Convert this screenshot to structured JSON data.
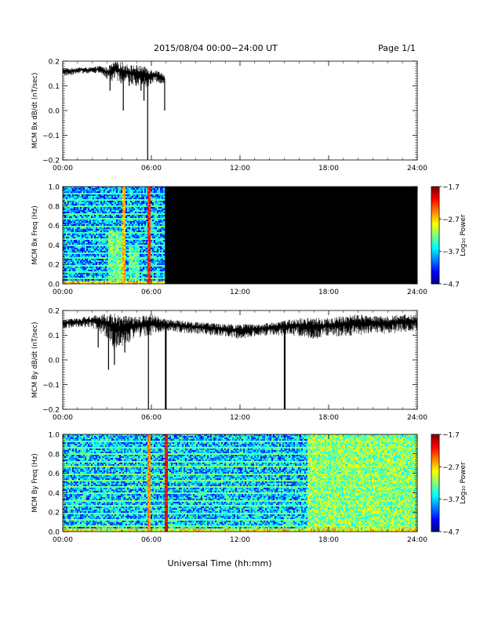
{
  "header": {
    "title": "2015/08/04  00:00−24:00 UT",
    "page": "Page 1/1"
  },
  "xlabel": "Universal Time (hh:mm)",
  "colors": {
    "background": "#000000",
    "trace": "#000000"
  },
  "chart_data": [
    {
      "type": "line",
      "ylabel": "MCM Bx dB/dt (nT/sec)",
      "xlim": [
        0,
        24
      ],
      "ylim": [
        -0.2,
        0.2
      ],
      "xticks": [
        "00:00",
        "06:00",
        "12:00",
        "18:00",
        "24:00"
      ],
      "yticks": [
        "−0.2",
        "−0.1",
        "0.0",
        "0.1",
        "0.2"
      ],
      "series": [
        {
          "x": [
            0.0,
            0.5,
            1.0,
            1.5,
            2.0,
            2.5,
            3.0,
            3.3,
            3.6,
            4.0,
            4.5,
            5.0,
            5.5,
            5.7,
            6.0,
            6.3,
            6.6,
            6.9
          ],
          "y": [
            0.16,
            0.16,
            0.165,
            0.165,
            0.165,
            0.17,
            0.155,
            0.16,
            0.17,
            0.16,
            0.155,
            0.15,
            0.15,
            0.14,
            0.145,
            0.145,
            0.14,
            0.13
          ],
          "noise": [
            0.015,
            0.012,
            0.01,
            0.01,
            0.01,
            0.012,
            0.02,
            0.03,
            0.03,
            0.035,
            0.03,
            0.035,
            0.03,
            0.04,
            0.025,
            0.02,
            0.02,
            0.015
          ]
        }
      ],
      "spikes": [
        {
          "x": 3.2,
          "y": 0.08
        },
        {
          "x": 4.1,
          "y": 0.0
        },
        {
          "x": 4.5,
          "y": 0.1
        },
        {
          "x": 5.3,
          "y": 0.08
        },
        {
          "x": 5.5,
          "y": 0.04
        },
        {
          "x": 5.75,
          "y": -0.2
        },
        {
          "x": 6.9,
          "y": 0.0
        }
      ],
      "data_end": 6.9
    },
    {
      "type": "heatmap",
      "ylabel": "MCM Bx Freq (Hz)",
      "xlim": [
        0,
        24
      ],
      "ylim": [
        0,
        1.0
      ],
      "xticks": [
        "00:00",
        "06:00",
        "12:00",
        "18:00",
        "24:00"
      ],
      "yticks": [
        "0.0",
        "0.2",
        "0.4",
        "0.6",
        "0.8",
        "1.0"
      ],
      "data_end": 6.9,
      "colorbar": {
        "label": "Log₁₀ Power",
        "ticks": [
          "−4.7",
          "−3.7",
          "−2.7",
          "−1.7"
        ],
        "range": [
          -4.7,
          -1.7
        ]
      },
      "background_level": -4.75,
      "base_level": -3.85,
      "harmonic_lines": [
        0.07,
        0.13,
        0.2,
        0.27,
        0.33,
        0.4,
        0.47,
        0.53,
        0.6,
        0.67,
        0.73,
        0.8,
        0.87,
        0.93
      ],
      "harmonic_level": -3.35,
      "low_freq_level": -2.9,
      "activity": [
        {
          "x_start": 3.0,
          "x_end": 4.2,
          "f_max": 0.55,
          "level": -3.3
        },
        {
          "x_start": 4.4,
          "x_end": 5.2,
          "f_max": 0.4,
          "level": -3.4
        }
      ],
      "vertical_streaks": [
        {
          "x": 5.75,
          "level": -2.2
        },
        {
          "x": 4.1,
          "level": -2.6
        }
      ]
    },
    {
      "type": "line",
      "ylabel": "MCM By dB/dt (nT/sec)",
      "xlim": [
        0,
        24
      ],
      "ylim": [
        -0.2,
        0.2
      ],
      "xticks": [
        "00:00",
        "06:00",
        "12:00",
        "18:00",
        "24:00"
      ],
      "yticks": [
        "−0.2",
        "−0.1",
        "0.0",
        "0.1",
        "0.2"
      ],
      "series": [
        {
          "x": [
            0,
            1,
            2,
            3,
            3.5,
            4,
            5,
            6,
            7,
            8,
            9,
            10,
            11,
            12,
            13,
            14,
            15,
            16,
            17,
            18,
            19,
            20,
            21,
            22,
            23,
            24
          ],
          "y": [
            0.15,
            0.155,
            0.16,
            0.15,
            0.13,
            0.13,
            0.14,
            0.15,
            0.145,
            0.14,
            0.135,
            0.13,
            0.125,
            0.12,
            0.125,
            0.13,
            0.135,
            0.14,
            0.135,
            0.14,
            0.145,
            0.15,
            0.15,
            0.15,
            0.155,
            0.155
          ],
          "noise": [
            0.015,
            0.015,
            0.02,
            0.04,
            0.06,
            0.05,
            0.035,
            0.035,
            0.02,
            0.02,
            0.02,
            0.02,
            0.02,
            0.025,
            0.02,
            0.02,
            0.025,
            0.03,
            0.035,
            0.03,
            0.035,
            0.035,
            0.03,
            0.03,
            0.03,
            0.025
          ]
        }
      ],
      "spikes": [
        {
          "x": 2.4,
          "y": 0.05
        },
        {
          "x": 3.1,
          "y": -0.04
        },
        {
          "x": 3.5,
          "y": -0.02
        },
        {
          "x": 4.2,
          "y": 0.03
        },
        {
          "x": 5.8,
          "y": -0.2
        },
        {
          "x": 6.95,
          "y": -0.2
        },
        {
          "x": 7.0,
          "y": -0.2
        },
        {
          "x": 15.0,
          "y": -0.2
        },
        {
          "x": 15.05,
          "y": -0.2
        }
      ],
      "data_end": 24
    },
    {
      "type": "heatmap",
      "ylabel": "MCM By Freq (Hz)",
      "xlim": [
        0,
        24
      ],
      "ylim": [
        0,
        1.0
      ],
      "xticks": [
        "00:00",
        "06:00",
        "12:00",
        "18:00",
        "24:00"
      ],
      "yticks": [
        "0.0",
        "0.2",
        "0.4",
        "0.6",
        "0.8",
        "1.0"
      ],
      "data_end": 24,
      "colorbar": {
        "label": "Log₁₀ Power",
        "ticks": [
          "−4.7",
          "−3.7",
          "−2.7",
          "−1.7"
        ],
        "range": [
          -4.7,
          -1.7
        ]
      },
      "background_level": -4.75,
      "base_level": -3.75,
      "harmonic_lines": [
        0.07,
        0.13,
        0.2,
        0.27,
        0.33,
        0.4,
        0.47,
        0.53,
        0.6,
        0.67,
        0.73,
        0.8,
        0.87,
        0.93
      ],
      "harmonic_level": -3.25,
      "low_freq_level": -3.0,
      "activity": [
        {
          "x_start": 16.5,
          "x_end": 24,
          "f_max": 1.0,
          "level": -3.2
        }
      ],
      "vertical_streaks": [
        {
          "x": 6.95,
          "level": -2.1
        },
        {
          "x": 5.75,
          "level": -2.5
        }
      ]
    }
  ]
}
